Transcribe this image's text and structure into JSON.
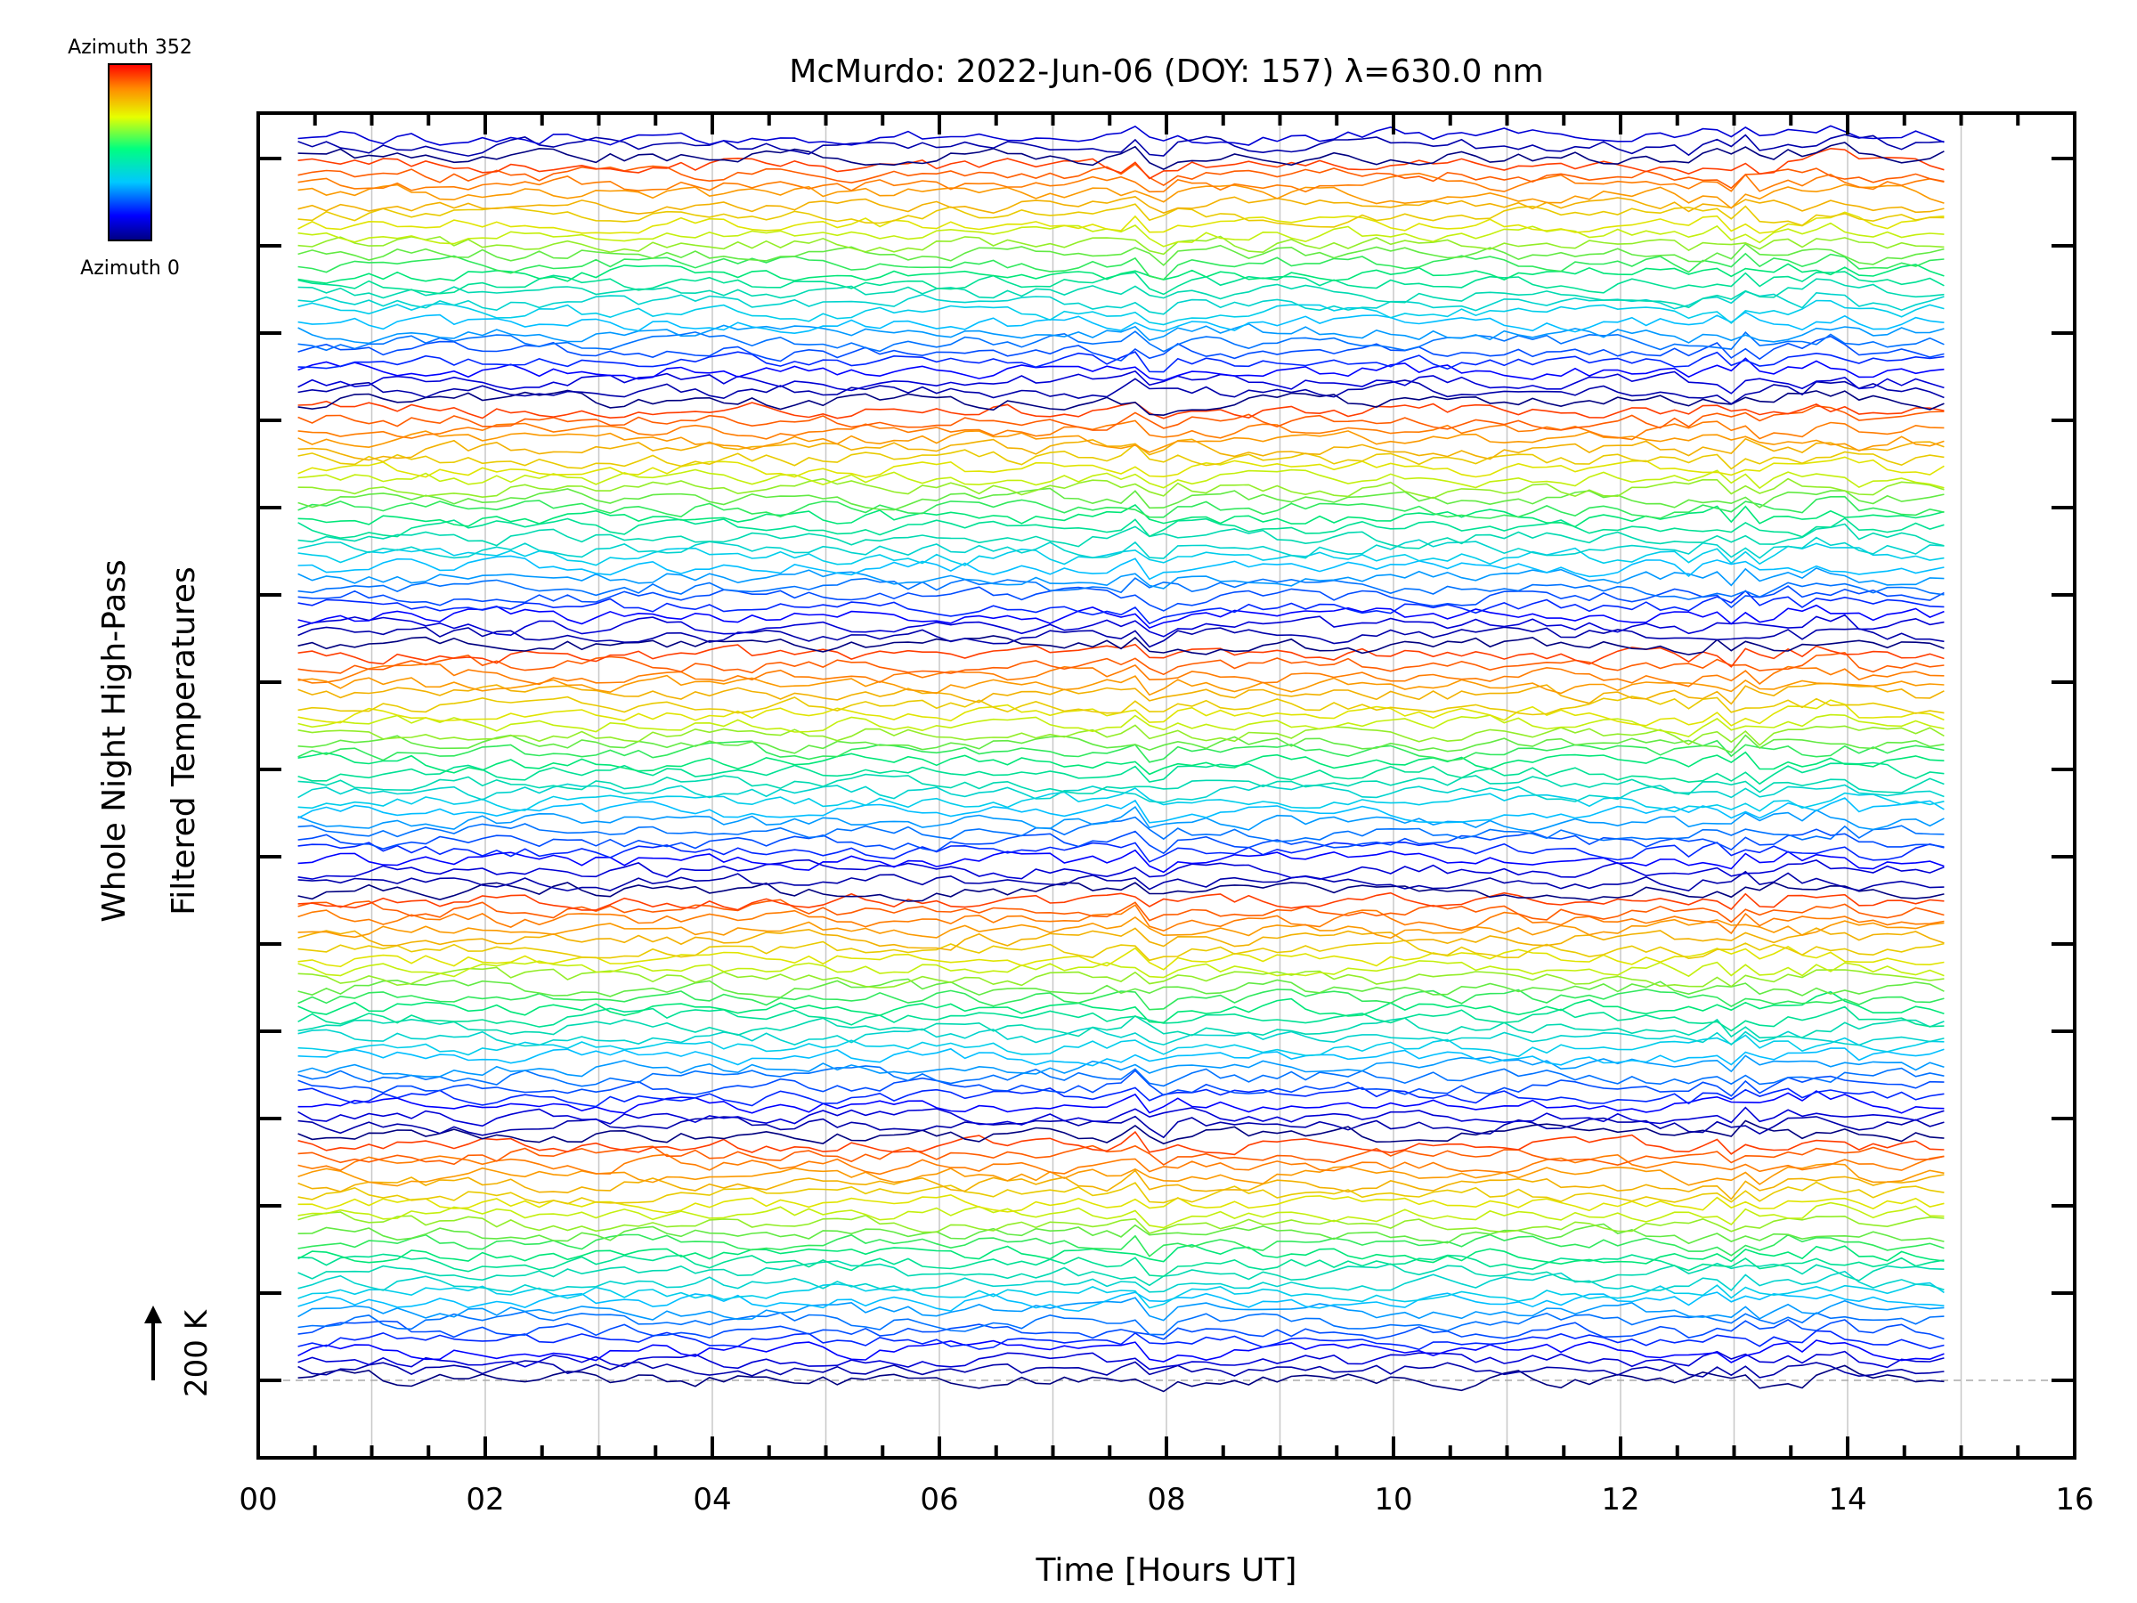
{
  "chart_data": {
    "type": "line",
    "title": "McMurdo: 2022-Jun-06 (DOY: 157) λ=630.0 nm",
    "xlabel": "Time [Hours UT]",
    "ylabel_line1": "Whole Night High-Pass",
    "ylabel_line2": "Filtered Temperatures",
    "scale_bar_label": "200 K",
    "xlim": [
      0,
      16
    ],
    "x_ticks": [
      "00",
      "02",
      "04",
      "06",
      "08",
      "10",
      "12",
      "14",
      "16"
    ],
    "x_tick_values": [
      0,
      2,
      4,
      6,
      8,
      10,
      12,
      14,
      16
    ],
    "colorbar": {
      "top_label": "Azimuth 352",
      "bottom_label": "Azimuth 0"
    },
    "series_count": 128,
    "x_start": 0.35,
    "x_end": 14.85,
    "colors": {
      "line": "#000000",
      "grid": "#c8c8c8",
      "baseline": "#aaaaaa"
    }
  }
}
